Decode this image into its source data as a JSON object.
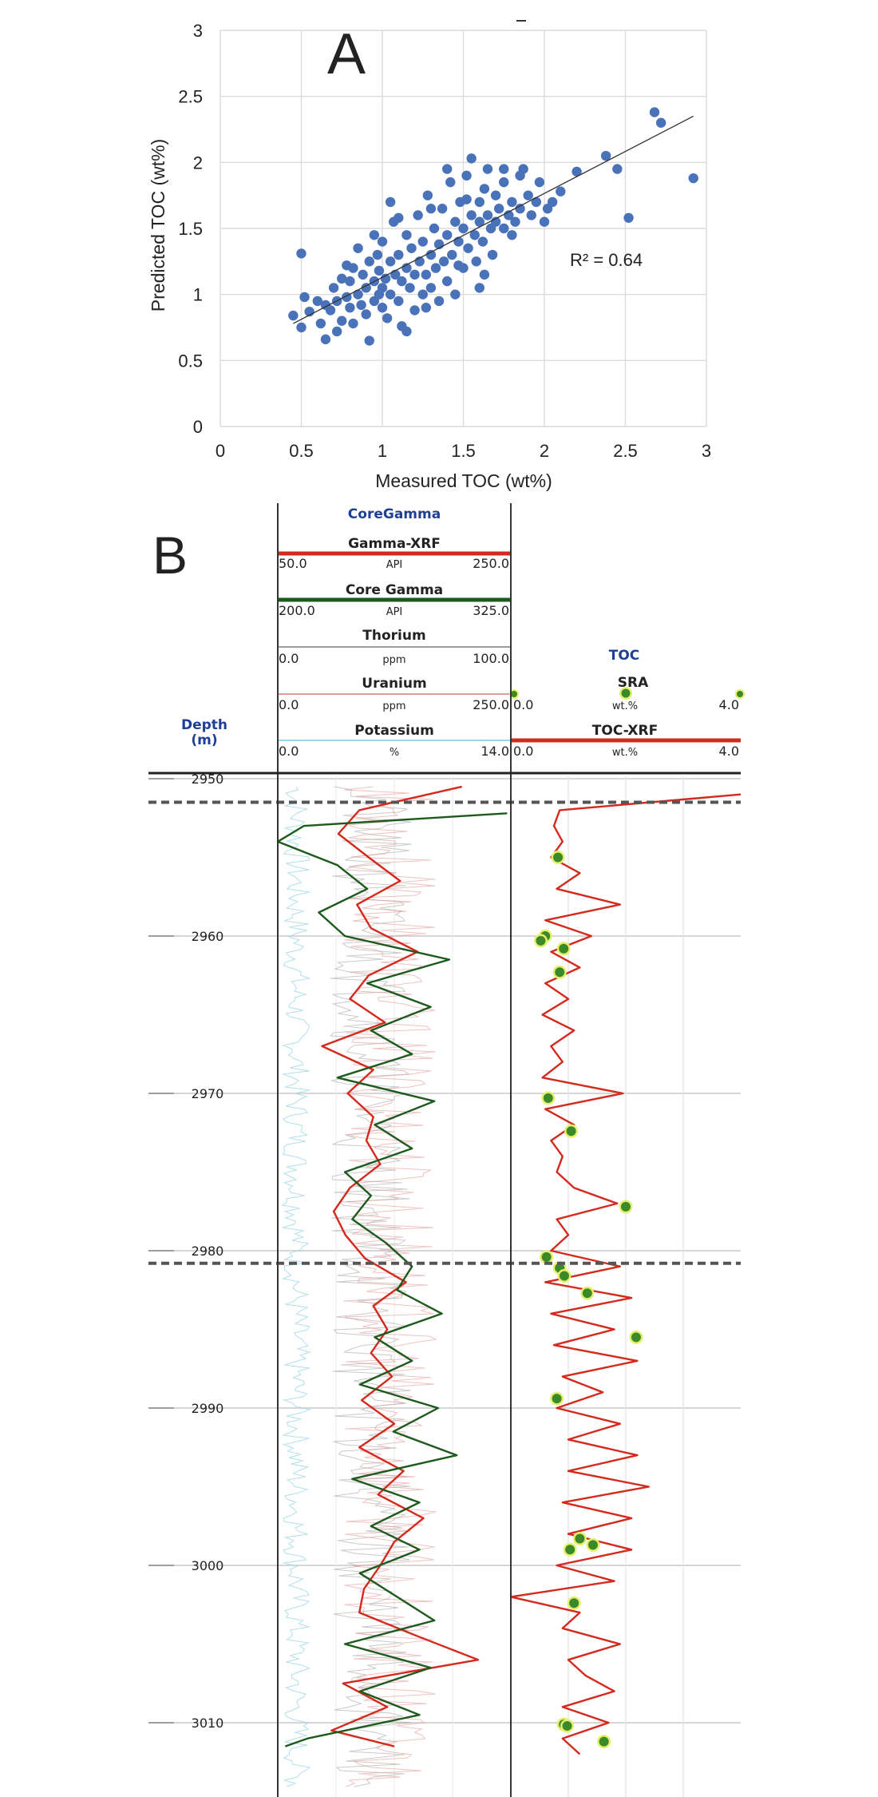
{
  "colors": {
    "scatter_point": "#4a72b8",
    "trendline": "#333333",
    "grid": "#dcdcdc",
    "gamma_xrf": "#d42a1e",
    "core_gamma": "#1e5a1e",
    "sra_point": "#3b8a2a",
    "sra_halo": "#e6ee6a",
    "toc_xrf": "#d42a1e",
    "header_blue": "#1f3f95",
    "thorium_trace": "#9e9e9e",
    "uranium_trace": "#e39a9a",
    "potassium_trace": "#9ed6e6"
  },
  "chart_data": [
    {
      "type": "scatter",
      "panel_label": "A",
      "xlabel": "Measured TOC (wt%)",
      "ylabel": "Predicted TOC (wt%)",
      "xlim": [
        0,
        3
      ],
      "ylim": [
        0,
        3
      ],
      "xticks": [
        "0",
        "0.5",
        "1",
        "1.5",
        "2",
        "2.5",
        "3"
      ],
      "yticks": [
        "0",
        "0.5",
        "1",
        "1.5",
        "2",
        "2.5",
        "3"
      ],
      "annotation": "R² = 0.64",
      "grid": true,
      "trendline": {
        "x": [
          0.45,
          2.92
        ],
        "y": [
          0.78,
          2.35
        ]
      },
      "points": [
        [
          0.45,
          0.84
        ],
        [
          0.5,
          0.75
        ],
        [
          0.5,
          1.31
        ],
        [
          0.52,
          0.98
        ],
        [
          0.55,
          0.87
        ],
        [
          0.6,
          0.95
        ],
        [
          0.62,
          0.78
        ],
        [
          0.65,
          0.66
        ],
        [
          0.65,
          0.92
        ],
        [
          0.68,
          0.88
        ],
        [
          0.7,
          1.05
        ],
        [
          0.72,
          0.95
        ],
        [
          0.75,
          0.8
        ],
        [
          0.75,
          1.12
        ],
        [
          0.78,
          0.98
        ],
        [
          0.8,
          0.9
        ],
        [
          0.8,
          1.1
        ],
        [
          0.82,
          1.2
        ],
        [
          0.82,
          0.78
        ],
        [
          0.85,
          1.0
        ],
        [
          0.85,
          1.35
        ],
        [
          0.87,
          0.92
        ],
        [
          0.88,
          1.15
        ],
        [
          0.9,
          0.85
        ],
        [
          0.9,
          1.05
        ],
        [
          0.92,
          1.25
        ],
        [
          0.92,
          0.65
        ],
        [
          0.95,
          1.1
        ],
        [
          0.95,
          0.95
        ],
        [
          0.97,
          1.3
        ],
        [
          0.98,
          1.18
        ],
        [
          1.0,
          0.9
        ],
        [
          1.0,
          1.05
        ],
        [
          1.0,
          1.4
        ],
        [
          1.02,
          1.12
        ],
        [
          1.03,
          0.82
        ],
        [
          1.05,
          1.25
        ],
        [
          1.05,
          1.0
        ],
        [
          1.07,
          1.55
        ],
        [
          1.08,
          1.15
        ],
        [
          1.1,
          0.95
        ],
        [
          1.1,
          1.3
        ],
        [
          1.12,
          1.1
        ],
        [
          1.12,
          0.76
        ],
        [
          1.15,
          1.2
        ],
        [
          1.15,
          1.45
        ],
        [
          1.17,
          1.05
        ],
        [
          1.18,
          1.35
        ],
        [
          1.2,
          0.88
        ],
        [
          1.2,
          1.15
        ],
        [
          1.22,
          1.6
        ],
        [
          1.23,
          1.25
        ],
        [
          1.25,
          1.0
        ],
        [
          1.25,
          1.4
        ],
        [
          1.27,
          1.15
        ],
        [
          1.28,
          1.75
        ],
        [
          1.3,
          1.3
        ],
        [
          1.3,
          1.05
        ],
        [
          1.32,
          1.5
        ],
        [
          1.33,
          1.2
        ],
        [
          1.35,
          0.95
        ],
        [
          1.35,
          1.38
        ],
        [
          1.37,
          1.65
        ],
        [
          1.38,
          1.25
        ],
        [
          1.4,
          1.1
        ],
        [
          1.4,
          1.45
        ],
        [
          1.42,
          1.85
        ],
        [
          1.43,
          1.3
        ],
        [
          1.45,
          1.55
        ],
        [
          1.45,
          1.0
        ],
        [
          1.47,
          1.4
        ],
        [
          1.48,
          1.7
        ],
        [
          1.5,
          1.2
        ],
        [
          1.5,
          1.5
        ],
        [
          1.52,
          1.9
        ],
        [
          1.53,
          1.35
        ],
        [
          1.55,
          1.6
        ],
        [
          1.55,
          2.03
        ],
        [
          1.57,
          1.45
        ],
        [
          1.58,
          1.25
        ],
        [
          1.6,
          1.7
        ],
        [
          1.6,
          1.55
        ],
        [
          1.62,
          1.4
        ],
        [
          1.63,
          1.8
        ],
        [
          1.65,
          1.6
        ],
        [
          1.65,
          1.95
        ],
        [
          1.67,
          1.5
        ],
        [
          1.68,
          1.3
        ],
        [
          1.7,
          1.75
        ],
        [
          1.7,
          1.55
        ],
        [
          1.72,
          1.65
        ],
        [
          1.75,
          1.85
        ],
        [
          1.75,
          1.5
        ],
        [
          1.78,
          1.6
        ],
        [
          1.8,
          1.7
        ],
        [
          1.8,
          1.45
        ],
        [
          1.82,
          1.55
        ],
        [
          1.85,
          1.65
        ],
        [
          1.87,
          1.95
        ],
        [
          1.9,
          1.75
        ],
        [
          1.92,
          1.6
        ],
        [
          1.95,
          1.7
        ],
        [
          1.97,
          1.85
        ],
        [
          2.0,
          1.55
        ],
        [
          2.02,
          1.65
        ],
        [
          2.05,
          1.7
        ],
        [
          1.85,
          1.9
        ],
        [
          0.78,
          1.22
        ],
        [
          0.95,
          1.45
        ],
        [
          1.1,
          1.58
        ],
        [
          1.3,
          1.65
        ],
        [
          1.47,
          1.22
        ],
        [
          1.63,
          1.15
        ],
        [
          2.1,
          1.78
        ],
        [
          2.38,
          2.05
        ],
        [
          2.45,
          1.95
        ],
        [
          2.52,
          1.58
        ],
        [
          2.72,
          2.3
        ],
        [
          2.68,
          2.38
        ],
        [
          2.92,
          1.88
        ],
        [
          1.15,
          0.72
        ],
        [
          0.98,
          1.0
        ],
        [
          1.4,
          1.95
        ],
        [
          1.27,
          0.9
        ],
        [
          0.72,
          0.72
        ],
        [
          1.05,
          1.7
        ],
        [
          1.6,
          1.05
        ],
        [
          1.75,
          1.95
        ],
        [
          2.2,
          1.93
        ],
        [
          1.52,
          1.72
        ]
      ]
    },
    {
      "type": "line",
      "panel_label": "B",
      "depth_label": "Depth",
      "depth_unit": "(m)",
      "depth_range": [
        2950,
        3012
      ],
      "depth_ticks": [
        "2950",
        "2960",
        "2970",
        "2980",
        "2990",
        "3000",
        "3010"
      ],
      "formation_boundaries": [
        2951.5,
        2980.8
      ],
      "track1": {
        "group_title": "CoreGamma",
        "curves": [
          {
            "name": "Gamma-XRF",
            "unit": "API",
            "min": "50.0",
            "max": "250.0",
            "min_val": 50,
            "max_val": 250,
            "depth": [
              2950.5,
              2952,
              2953.5,
              2955,
              2956.5,
              2958,
              2959.5,
              2961,
              2962.5,
              2964,
              2965.5,
              2967,
              2968.5,
              2970,
              2971.5,
              2973,
              2974.5,
              2976,
              2977.5,
              2979,
              2980.5,
              2982,
              2983.5,
              2985,
              2986.5,
              2988,
              2989.5,
              2991,
              2992.5,
              2994,
              2995.5,
              2997,
              2998.5,
              3000,
              3001.5,
              3003,
              3004.5,
              3006,
              3007.5,
              3009,
              3010.5,
              3011.5
            ],
            "values": [
              208,
              120,
              102,
              128,
              155,
              118,
              130,
              170,
              128,
              112,
              142,
              88,
              132,
              110,
              132,
              126,
              138,
              112,
              98,
              108,
              125,
              160,
              132,
              144,
              130,
              148,
              122,
              150,
              120,
              158,
              136,
              175,
              150,
              138,
              124,
              120,
              170,
              222,
              106,
              144,
              96,
              150
            ]
          },
          {
            "name": "Core Gamma",
            "unit": "API",
            "min": "200.0",
            "max": "325.0",
            "min_val": 200,
            "max_val": 325,
            "depth": [
              2952.2,
              2953,
              2954,
              2955.5,
              2957,
              2958.5,
              2960,
              2961.5,
              2963,
              2964.5,
              2966,
              2967.5,
              2969,
              2970.5,
              2972,
              2973.5,
              2975,
              2976.5,
              2978,
              2979.5,
              2981,
              2982.5,
              2984,
              2985.5,
              2987,
              2988.5,
              2990,
              2991.5,
              2993,
              2994.5,
              2996,
              2997.5,
              2999,
              3000.5,
              3002,
              3003.5,
              3005,
              3006.5,
              3008,
              3009.5,
              3011,
              3011.5
            ],
            "values": [
              323,
              214,
              200,
              232,
              248,
              222,
              236,
              292,
              248,
              282,
              250,
              272,
              232,
              284,
              252,
              272,
              236,
              250,
              240,
              258,
              272,
              264,
              288,
              252,
              272,
              244,
              286,
              262,
              296,
              240,
              276,
              250,
              276,
              244,
              264,
              284,
              236,
              282,
              244,
              276,
              216,
              204
            ]
          },
          {
            "name": "Thorium",
            "unit": "ppm",
            "min": "0.0",
            "max": "100.0"
          },
          {
            "name": "Uranium",
            "unit": "ppm",
            "min": "0.0",
            "max": "250.0"
          },
          {
            "name": "Potassium",
            "unit": "%",
            "min": "0.0",
            "max": "14.0"
          }
        ]
      },
      "track2": {
        "group_title": "TOC",
        "curves": [
          {
            "name": "SRA",
            "unit": "wt.%",
            "min": "0.0",
            "max": "4.0",
            "min_val": 0,
            "max_val": 4,
            "points": [
              [
                2955,
                0.82
              ],
              [
                2960,
                0.6
              ],
              [
                2960.3,
                0.52
              ],
              [
                2960.8,
                0.92
              ],
              [
                2962.3,
                0.85
              ],
              [
                2970.3,
                0.65
              ],
              [
                2972.4,
                1.05
              ],
              [
                2977.2,
                2.0
              ],
              [
                2980.4,
                0.62
              ],
              [
                2981.1,
                0.85
              ],
              [
                2981.6,
                0.93
              ],
              [
                2982.7,
                1.33
              ],
              [
                2985.5,
                2.18
              ],
              [
                2989.4,
                0.8
              ],
              [
                2998.3,
                1.2
              ],
              [
                2998.7,
                1.43
              ],
              [
                2999,
                1.03
              ],
              [
                3002.4,
                1.1
              ],
              [
                3010.1,
                0.92
              ],
              [
                3010.2,
                0.98
              ],
              [
                3011.2,
                1.62
              ]
            ]
          },
          {
            "name": "TOC-XRF",
            "unit": "wt.%",
            "min": "0.0",
            "max": "4.0",
            "min_val": 0,
            "max_val": 4,
            "depth": [
              2951,
              2952,
              2953,
              2954,
              2955,
              2956,
              2957,
              2958,
              2959,
              2960,
              2961,
              2962,
              2963,
              2964,
              2965,
              2966,
              2967,
              2968,
              2969,
              2970,
              2971,
              2972,
              2973,
              2974,
              2975,
              2976,
              2977,
              2978,
              2979,
              2980,
              2981,
              2982,
              2983,
              2984,
              2985,
              2986,
              2987,
              2988,
              2989,
              2990,
              2991,
              2992,
              2993,
              2994,
              2995,
              2996,
              2997,
              2998,
              2999,
              3000,
              3001,
              3002,
              3003,
              3004,
              3005,
              3006,
              3007,
              3008,
              3009,
              3010,
              3011,
              3012
            ],
            "values": [
              4.0,
              0.85,
              0.75,
              0.9,
              0.7,
              1.2,
              0.8,
              1.9,
              0.6,
              1.4,
              0.7,
              1.2,
              0.6,
              1.0,
              0.55,
              1.1,
              0.7,
              0.9,
              0.55,
              1.95,
              0.6,
              1.1,
              0.7,
              0.9,
              0.8,
              1.1,
              1.85,
              0.8,
              1.0,
              0.7,
              1.9,
              0.6,
              2.1,
              0.7,
              1.8,
              0.75,
              2.2,
              0.9,
              1.6,
              0.8,
              1.9,
              1.0,
              2.2,
              1.0,
              2.4,
              0.9,
              2.1,
              1.0,
              2.1,
              0.8,
              1.8,
              0.0,
              1.2,
              0.9,
              1.9,
              1.0,
              1.3,
              1.8,
              0.9,
              1.7,
              0.9,
              1.2
            ]
          }
        ]
      }
    }
  ]
}
